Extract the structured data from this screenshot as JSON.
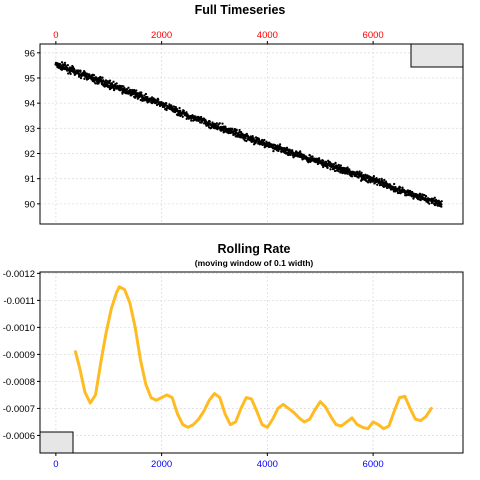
{
  "colors": {
    "top_axis": "#ff0000",
    "bottom_axis": "#0000ff",
    "points": "#000000",
    "rate_line": "#ffbb22",
    "grid": "#dddddd",
    "corner_box": "#e6e6e6"
  },
  "chart_data": [
    {
      "type": "scatter",
      "title": "Full Timeseries",
      "xlabel": "",
      "ylabel": "",
      "x_ticks": [
        "0",
        "2000",
        "4000",
        "6000"
      ],
      "y_ticks": [
        "90",
        "91",
        "92",
        "93",
        "94",
        "95",
        "96"
      ],
      "xlim": [
        -300,
        7700
      ],
      "ylim": [
        89.2,
        96.35
      ],
      "x_axis_position": "top",
      "grid": true,
      "series": [
        {
          "x": [
            0,
            500,
            1000,
            1500,
            2000,
            2500,
            3000,
            3500,
            4000,
            4500,
            5000,
            5500,
            6000,
            6500,
            7000,
            7300
          ],
          "y": [
            95.55,
            95.15,
            94.75,
            94.35,
            93.95,
            93.5,
            93.1,
            92.75,
            92.35,
            92.0,
            91.65,
            91.3,
            90.95,
            90.55,
            90.2,
            90.0
          ]
        }
      ]
    },
    {
      "type": "line",
      "title": "Rolling Rate",
      "subtitle": "(moving window of 0.1 width)",
      "xlabel": "",
      "ylabel": "",
      "x_ticks": [
        "0",
        "2000",
        "4000",
        "6000"
      ],
      "y_ticks": [
        "-0.0012",
        "-0.0011",
        "-0.0010",
        "-0.0009",
        "-0.0008",
        "-0.0007",
        "-0.0006"
      ],
      "xlim": [
        -300,
        7700
      ],
      "ylim": [
        -0.001205,
        -0.000535
      ],
      "y_reversed": true,
      "x_axis_position": "bottom",
      "grid": true,
      "series": [
        {
          "x": [
            370,
            450,
            550,
            650,
            750,
            850,
            950,
            1050,
            1150,
            1200,
            1300,
            1400,
            1500,
            1600,
            1700,
            1800,
            1900,
            2000,
            2100,
            2200,
            2300,
            2400,
            2500,
            2600,
            2700,
            2800,
            2900,
            3000,
            3100,
            3200,
            3300,
            3400,
            3500,
            3600,
            3700,
            3800,
            3900,
            4000,
            4100,
            4200,
            4300,
            4400,
            4500,
            4600,
            4700,
            4800,
            4900,
            5000,
            5100,
            5200,
            5300,
            5400,
            5500,
            5600,
            5700,
            5800,
            5900,
            6000,
            6100,
            6200,
            6300,
            6400,
            6500,
            6600,
            6700,
            6800,
            6900,
            7000,
            7100
          ],
          "y": [
            -0.00091,
            -0.00085,
            -0.00076,
            -0.00072,
            -0.00075,
            -0.00087,
            -0.00098,
            -0.00107,
            -0.00113,
            -0.00115,
            -0.00114,
            -0.00109,
            -0.001,
            -0.00088,
            -0.00079,
            -0.00074,
            -0.00073,
            -0.00074,
            -0.00075,
            -0.00074,
            -0.00068,
            -0.00064,
            -0.00063,
            -0.00064,
            -0.00066,
            -0.00069,
            -0.00073,
            -0.000755,
            -0.00074,
            -0.00068,
            -0.00064,
            -0.00065,
            -0.0007,
            -0.00074,
            -0.000735,
            -0.00069,
            -0.00064,
            -0.00063,
            -0.00066,
            -0.0007,
            -0.000715,
            -0.0007,
            -0.000685,
            -0.000665,
            -0.00065,
            -0.00066,
            -0.000695,
            -0.000725,
            -0.000705,
            -0.00067,
            -0.00064,
            -0.000635,
            -0.00065,
            -0.000665,
            -0.00064,
            -0.00063,
            -0.000625,
            -0.00065,
            -0.00064,
            -0.000625,
            -0.000635,
            -0.00069,
            -0.00074,
            -0.000745,
            -0.0007,
            -0.00066,
            -0.000655,
            -0.00067,
            -0.0007
          ]
        }
      ]
    }
  ]
}
